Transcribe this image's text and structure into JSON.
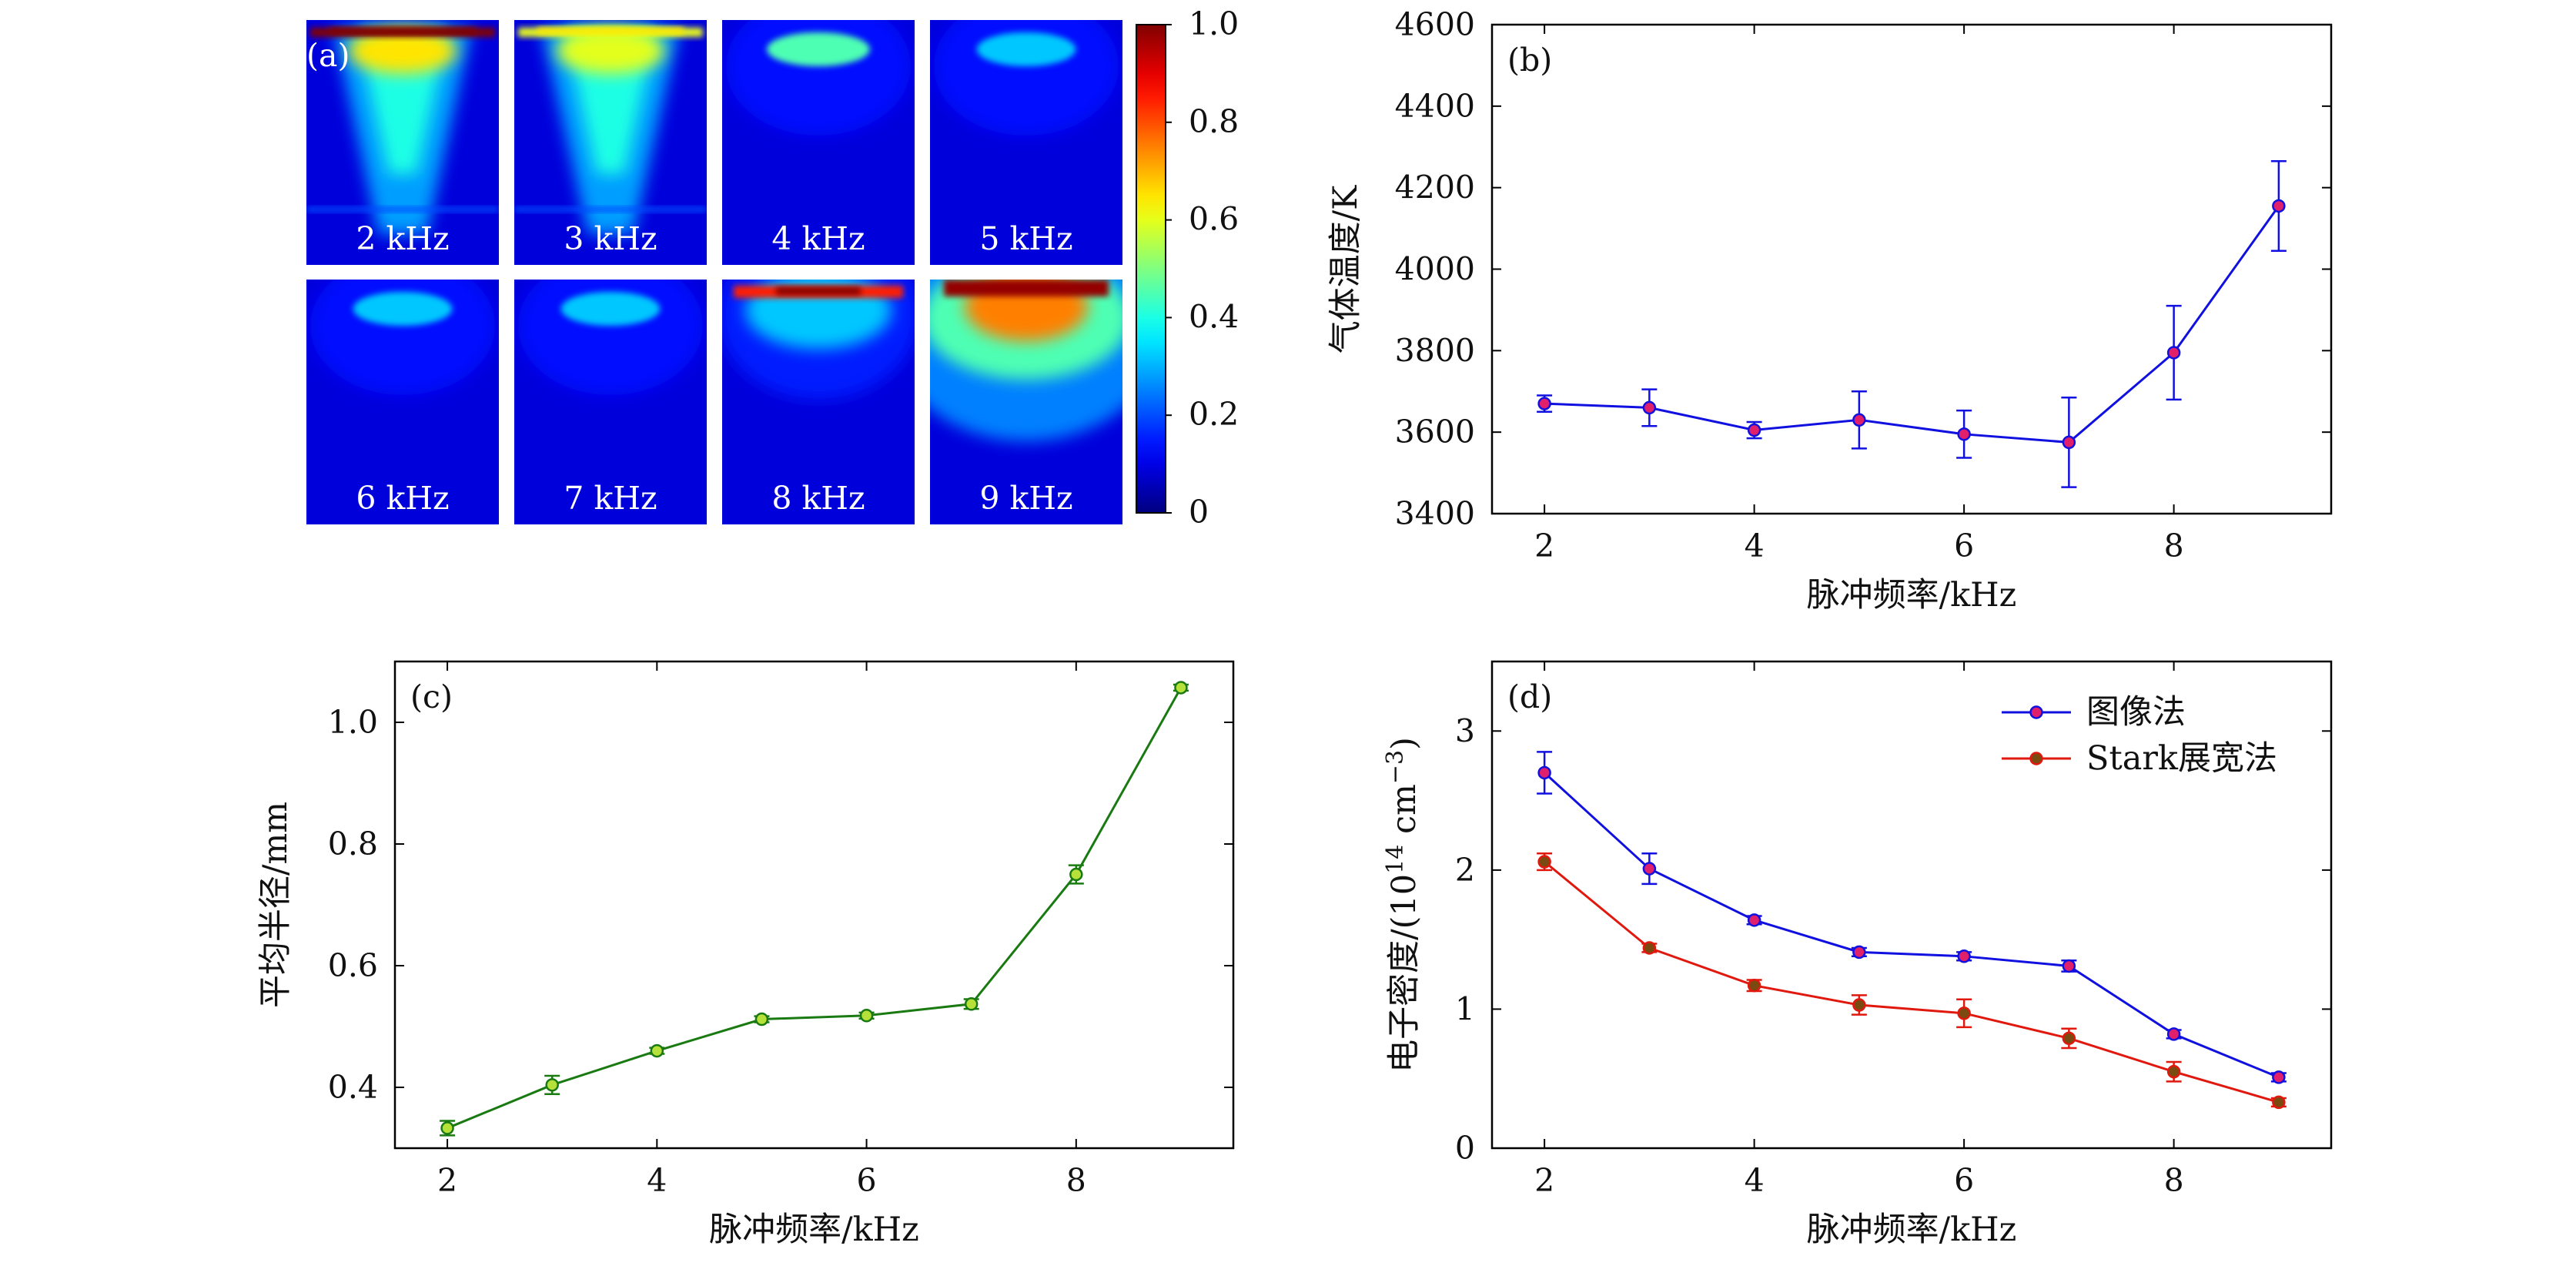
{
  "panel_a": {
    "label": "(a)",
    "images": [
      {
        "label": "2 kHz",
        "kind": "column",
        "peak": 1.0,
        "spread": 0.55
      },
      {
        "label": "3 kHz",
        "kind": "column",
        "peak": 0.65,
        "spread": 0.45
      },
      {
        "label": "4 kHz",
        "kind": "blob",
        "peak": 0.45,
        "spread": 0.0
      },
      {
        "label": "5 kHz",
        "kind": "blob",
        "peak": 0.32,
        "spread": 0.0
      },
      {
        "label": "6 kHz",
        "kind": "blob",
        "peak": 0.32,
        "spread": 0.0
      },
      {
        "label": "7 kHz",
        "kind": "blob",
        "peak": 0.32,
        "spread": 0.0
      },
      {
        "label": "8 kHz",
        "kind": "plume",
        "peak": 1.0,
        "spread": 0.55
      },
      {
        "label": "9 kHz",
        "kind": "plume",
        "peak": 1.0,
        "spread": 1.0
      }
    ],
    "colorbar": {
      "ticks": [
        "1.0",
        "0.8",
        "0.6",
        "0.4",
        "0.2",
        "0"
      ],
      "min": 0,
      "max": 1
    }
  },
  "chart_data": [
    {
      "type": "line",
      "panel": "(b)",
      "xlabel": "脉冲频率/kHz",
      "ylabel": "气体温度/K",
      "xlim": [
        1.5,
        9.5
      ],
      "ylim": [
        3400,
        4600
      ],
      "xticks": [
        2,
        4,
        6,
        8
      ],
      "yticks": [
        3400,
        3600,
        3800,
        4000,
        4200,
        4400,
        4600
      ],
      "series": [
        {
          "x": [
            2,
            3,
            4,
            5,
            6,
            7,
            8,
            9
          ],
          "y": [
            3670,
            3660,
            3605,
            3630,
            3595,
            3575,
            3795,
            4155
          ],
          "err": [
            20,
            45,
            20,
            70,
            58,
            110,
            115,
            110
          ],
          "color": "#1010e0",
          "marker_face": "#e0206a",
          "marker_edge": "#1010e0"
        }
      ]
    },
    {
      "type": "line",
      "panel": "(c)",
      "xlabel": "脉冲频率/kHz",
      "ylabel": "平均半径/mm",
      "xlim": [
        1.5,
        9.5
      ],
      "ylim": [
        0.3,
        1.1
      ],
      "xticks": [
        2,
        4,
        6,
        8
      ],
      "yticks": [
        0.4,
        0.6,
        0.8,
        1.0
      ],
      "series": [
        {
          "x": [
            2,
            3,
            4,
            5,
            6,
            7,
            8,
            9
          ],
          "y": [
            0.333,
            0.404,
            0.46,
            0.512,
            0.518,
            0.537,
            0.75,
            1.057
          ],
          "err": [
            0.012,
            0.015,
            0.005,
            0.005,
            0.005,
            0.008,
            0.015,
            0.005
          ],
          "color": "#1a7a12",
          "marker_face": "#b6e03a",
          "marker_edge": "#1a7a12"
        }
      ]
    },
    {
      "type": "line",
      "panel": "(d)",
      "xlabel": "脉冲频率/kHz",
      "ylabel_main": "电子密度/(10",
      "ylabel_exp1": "14",
      "ylabel_mid": " cm",
      "ylabel_exp2": "−3",
      "ylabel_end": ")",
      "xlim": [
        1.5,
        9.5
      ],
      "ylim": [
        0,
        3.5
      ],
      "xticks": [
        2,
        4,
        6,
        8
      ],
      "yticks": [
        0,
        1,
        2,
        3
      ],
      "legend_position": "top-right",
      "series": [
        {
          "name": "图像法",
          "x": [
            2,
            3,
            4,
            5,
            6,
            7,
            8,
            9
          ],
          "y": [
            2.7,
            2.01,
            1.64,
            1.41,
            1.38,
            1.31,
            0.82,
            0.51
          ],
          "err": [
            0.15,
            0.11,
            0.03,
            0.03,
            0.03,
            0.04,
            0.03,
            0.03
          ],
          "color": "#1010e0",
          "marker_face": "#e0206a",
          "marker_edge": "#1010e0"
        },
        {
          "name": "Stark展宽法",
          "x": [
            2,
            3,
            4,
            5,
            6,
            7,
            8,
            9
          ],
          "y": [
            2.06,
            1.44,
            1.17,
            1.03,
            0.97,
            0.79,
            0.55,
            0.33
          ],
          "err": [
            0.06,
            0.03,
            0.04,
            0.07,
            0.1,
            0.07,
            0.07,
            0.03
          ],
          "color": "#e0180e",
          "marker_face": "#7a4a10",
          "marker_edge": "#e0180e"
        }
      ]
    }
  ]
}
